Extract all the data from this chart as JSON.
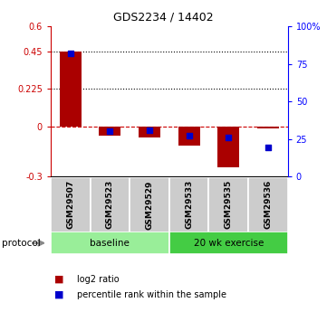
{
  "title": "GDS2234 / 14402",
  "samples": [
    "GSM29507",
    "GSM29523",
    "GSM29529",
    "GSM29533",
    "GSM29535",
    "GSM29536"
  ],
  "log2_ratio": [
    0.45,
    -0.055,
    -0.065,
    -0.115,
    -0.245,
    -0.01
  ],
  "percentile_rank": [
    82,
    30,
    31,
    27,
    26,
    19
  ],
  "ylim_left": [
    -0.3,
    0.6
  ],
  "ylim_right": [
    0,
    100
  ],
  "yticks_left": [
    -0.3,
    0,
    0.225,
    0.45,
    0.6
  ],
  "ytick_labels_left": [
    "-0.3",
    "0",
    "0.225",
    "0.45",
    "0.6"
  ],
  "yticks_right": [
    0,
    25,
    50,
    75,
    100
  ],
  "ytick_labels_right": [
    "0",
    "25",
    "50",
    "75",
    "100%"
  ],
  "hlines": [
    0.225,
    0.45
  ],
  "protocol_groups": [
    {
      "label": "baseline",
      "indices": [
        0,
        1,
        2
      ],
      "color": "#99ee99"
    },
    {
      "label": "20 wk exercise",
      "indices": [
        3,
        4,
        5
      ],
      "color": "#44cc44"
    }
  ],
  "bar_color": "#aa0000",
  "marker_color": "#0000cc",
  "zero_line_color": "#cc0000",
  "zero_line_dash": "--",
  "legend_items": [
    "log2 ratio",
    "percentile rank within the sample"
  ],
  "protocol_label": "protocol",
  "bar_width": 0.55,
  "title_fontsize": 9,
  "label_fontsize": 6.5,
  "axis_fontsize": 7,
  "sample_label_color": "#888888",
  "sample_box_color": "#cccccc"
}
